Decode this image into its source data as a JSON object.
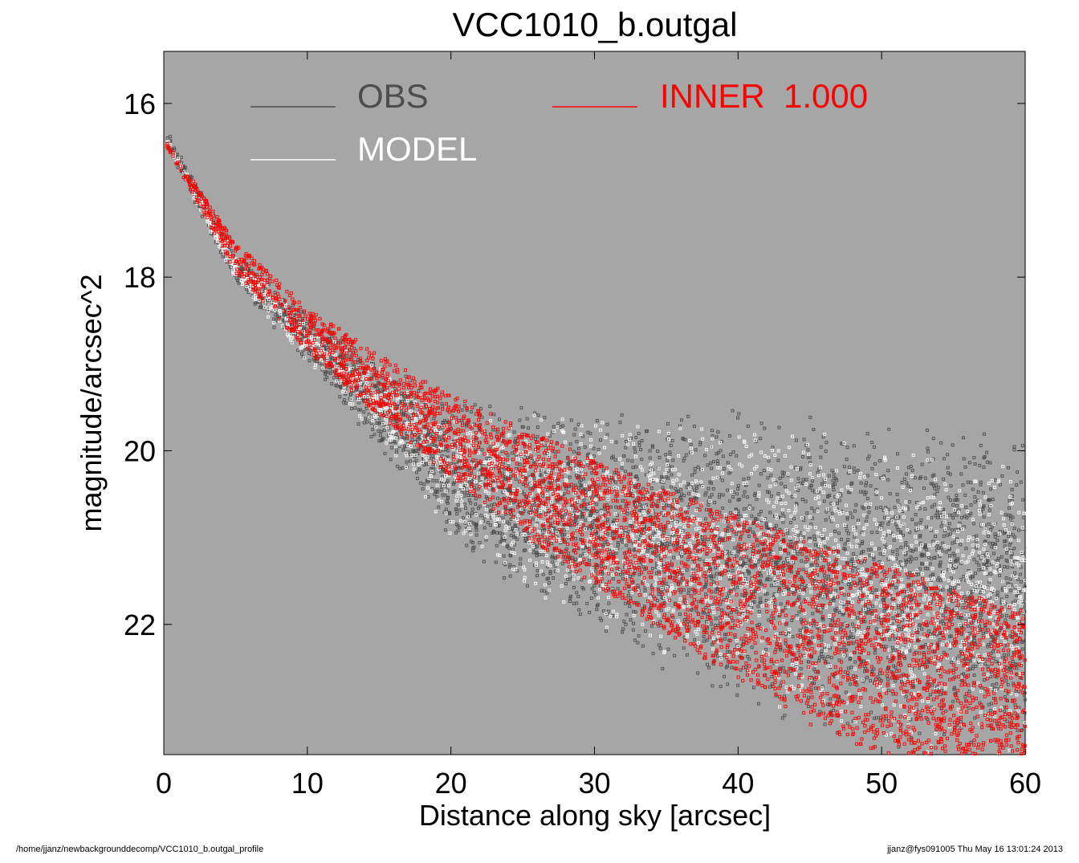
{
  "chart_data": {
    "type": "scatter",
    "title": "VCC1010_b.outgal",
    "xlabel": "Distance along sky [arcsec]",
    "ylabel": "magnitude/arcsec^2",
    "xlim": [
      0,
      60
    ],
    "ylim": [
      23.5,
      15.4
    ],
    "y_inverted": true,
    "x_ticks": [
      0,
      10,
      20,
      30,
      40,
      50,
      60
    ],
    "y_ticks": [
      16,
      18,
      20,
      22
    ],
    "grid": false,
    "background_color": "#a6a6a6",
    "legend_placement": "top",
    "series": [
      {
        "name": "OBS",
        "color": "#4d4d4d",
        "marker": "open-square",
        "envelope": {
          "x": [
            0.2,
            5,
            10,
            15,
            20,
            30,
            40,
            50,
            60
          ],
          "y_upper": [
            16.3,
            17.7,
            18.4,
            18.95,
            19.35,
            19.5,
            19.5,
            19.6,
            19.75
          ],
          "y_lower": [
            16.5,
            18.1,
            19.0,
            20.0,
            21.1,
            22.2,
            23.0,
            23.5,
            23.5
          ]
        }
      },
      {
        "name": "MODEL",
        "color": "#ffffff",
        "marker": "open-square",
        "envelope": {
          "x": [
            0.2,
            5,
            10,
            15,
            20,
            30,
            40,
            50,
            60
          ],
          "y_upper": [
            16.35,
            17.75,
            18.45,
            19.0,
            19.4,
            19.6,
            19.6,
            19.8,
            20.0
          ],
          "y_lower": [
            16.5,
            18.05,
            19.0,
            19.9,
            21.0,
            22.1,
            22.9,
            23.5,
            23.5
          ]
        }
      },
      {
        "name": "INNER  1.000",
        "color": "#ff0000",
        "marker": "open-square",
        "envelope": {
          "x": [
            0.2,
            5,
            10,
            15,
            20,
            25,
            30,
            35,
            40,
            45,
            50,
            55,
            60
          ],
          "y_upper": [
            16.45,
            17.6,
            18.35,
            18.9,
            19.35,
            19.75,
            20.1,
            20.45,
            20.75,
            21.05,
            21.3,
            21.6,
            21.85
          ],
          "y_lower": [
            16.5,
            17.95,
            18.85,
            19.6,
            20.3,
            20.95,
            21.55,
            22.1,
            22.65,
            23.15,
            23.5,
            23.5,
            23.5
          ]
        }
      }
    ]
  },
  "legend": {
    "obs_label": "OBS",
    "model_label": "MODEL",
    "inner_label": "INNER  1.000"
  },
  "footer": {
    "left": "/home/jjanz/newbackgrounddecomp/VCC1010_b.outgal_profile",
    "right": "jjanz@fys091005  Thu May 16 13:01:24 2013"
  }
}
